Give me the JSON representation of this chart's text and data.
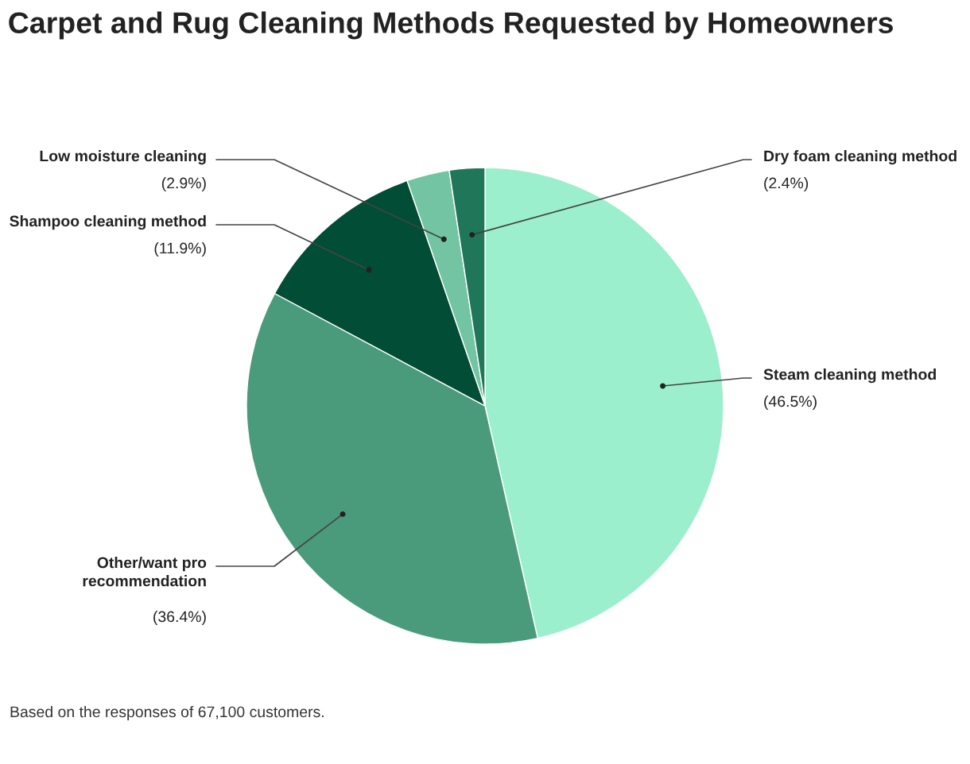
{
  "chart_data": {
    "type": "pie",
    "title": "Carpet and Rug Cleaning Methods Requested by Homeowners",
    "categories": [
      "Steam cleaning method",
      "Other/want pro recommendation",
      "Shampoo cleaning method",
      "Low moisture cleaning",
      "Dry foam cleaning method"
    ],
    "values": [
      46.5,
      36.4,
      11.9,
      2.9,
      2.4
    ],
    "colors": [
      "#9cefcc",
      "#4a9b7c",
      "#014d35",
      "#72c4a2",
      "#1f7658"
    ],
    "value_labels": [
      "(46.5%)",
      "(36.4%)",
      "(11.9%)",
      "(2.9%)",
      "(2.4%)"
    ],
    "annotations": [
      "Based on the responses of 67,100 customers."
    ]
  }
}
